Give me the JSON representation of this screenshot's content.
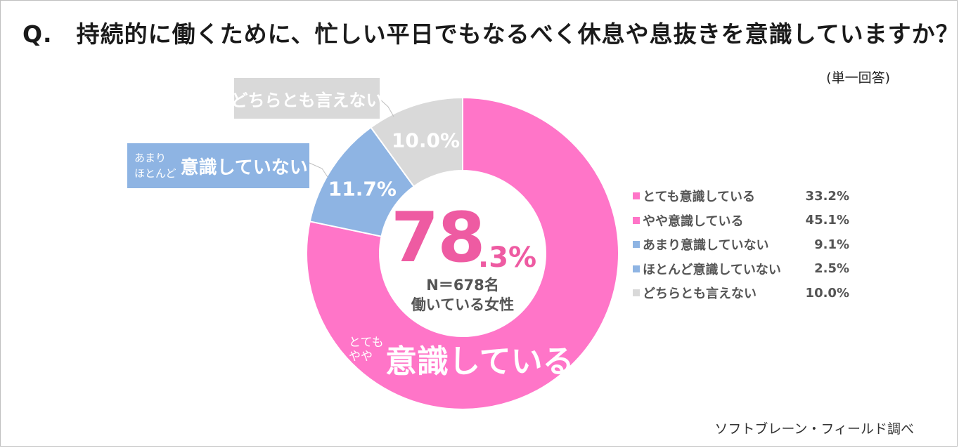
{
  "title": "Q.　持続的に働くために、忙しい平日でもなるべく休息や息抜きを意識していますか？",
  "subtitle": "(単一回答)",
  "source": "ソフトブレーン・フィールド調べ",
  "center": {
    "big": "78",
    "decimal": ".3%",
    "n": "N＝678名",
    "desc": "働いている女性"
  },
  "callouts": {
    "gray": "どちらとも言えない",
    "blue_small_1": "あまり",
    "blue_small_2": "ほとんど",
    "blue_big": "意識していない",
    "pink_small_1": "とても",
    "pink_small_2": "やや",
    "pink_big": "意識している"
  },
  "colors": {
    "pink": "#ff75c8",
    "pink_text": "#ee5ba2",
    "blue": "#8eb4e3",
    "gray": "#d9d9d9"
  },
  "chart_data": {
    "type": "pie",
    "variant": "donut",
    "segments": [
      {
        "label": "意識している",
        "value": 78.3,
        "color": "#ff75c8",
        "display": ""
      },
      {
        "label": "意識していない",
        "value": 11.7,
        "color": "#8eb4e3",
        "display": "11.7%"
      },
      {
        "label": "どちらとも言えない",
        "value": 10.0,
        "color": "#d9d9d9",
        "display": "10.0%"
      }
    ],
    "legend": [
      {
        "label": "とても意識している",
        "value": "33.2%",
        "color": "#ff75c8"
      },
      {
        "label": "やや意識している",
        "value": "45.1%",
        "color": "#ff75c8"
      },
      {
        "label": "あまり意識していない",
        "value": "9.1%",
        "color": "#8eb4e3"
      },
      {
        "label": "ほとんど意識していない",
        "value": "2.5%",
        "color": "#8eb4e3"
      },
      {
        "label": "どちらとも言えない",
        "value": "10.0%",
        "color": "#d9d9d9"
      }
    ],
    "legend_position": "right"
  }
}
